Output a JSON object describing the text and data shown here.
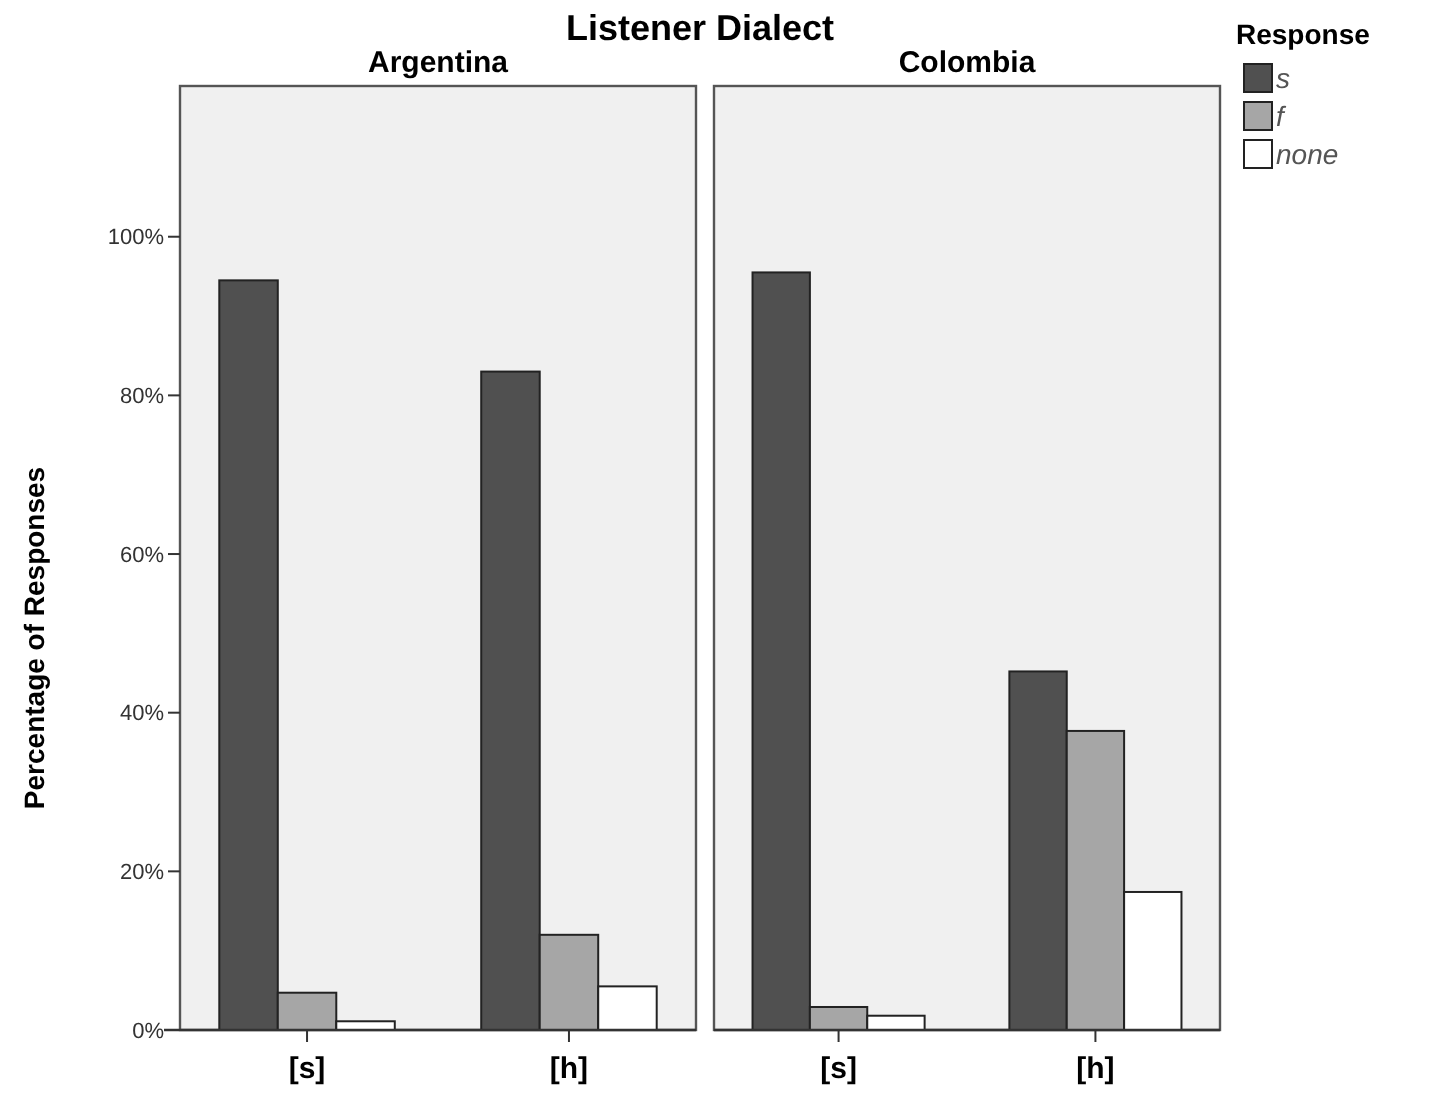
{
  "chart_data": [
    {
      "type": "bar",
      "title": "Listener Dialect",
      "subtitle": "Argentina",
      "ylabel": "Percentage of Responses",
      "categories": [
        "[s]",
        "[h]"
      ],
      "series": [
        {
          "color": "#505050",
          "values": [
            94.5,
            83.0
          ]
        },
        {
          "color": "#a6a6a6",
          "values": [
            4.7,
            12.0
          ]
        },
        {
          "color": "#ffffff",
          "values": [
            1.1,
            5.5
          ]
        }
      ],
      "ylim": [
        0,
        119
      ],
      "yticks": [
        {
          "value": 0,
          "label": "0%"
        },
        {
          "value": 20,
          "label": "20%"
        },
        {
          "value": 40,
          "label": "40%"
        },
        {
          "value": 60,
          "label": "60%"
        },
        {
          "value": 80,
          "label": "80%"
        },
        {
          "value": 100,
          "label": "100%"
        }
      ]
    },
    {
      "type": "bar",
      "subtitle": "Colombia",
      "categories": [
        "[s]",
        "[h]"
      ],
      "series": [
        {
          "name": "s",
          "color": "#505050",
          "values": [
            95.5,
            45.2
          ]
        },
        {
          "name": "f",
          "color": "#a6a6a6",
          "values": [
            2.9,
            37.7
          ]
        },
        {
          "name": "none",
          "color": "#ffffff",
          "values": [
            1.8,
            17.4
          ]
        }
      ],
      "ylim": [
        0,
        119
      ],
      "tick_labels": "x",
      "legend": "top right",
      "legend_title": "Response"
    }
  ]
}
